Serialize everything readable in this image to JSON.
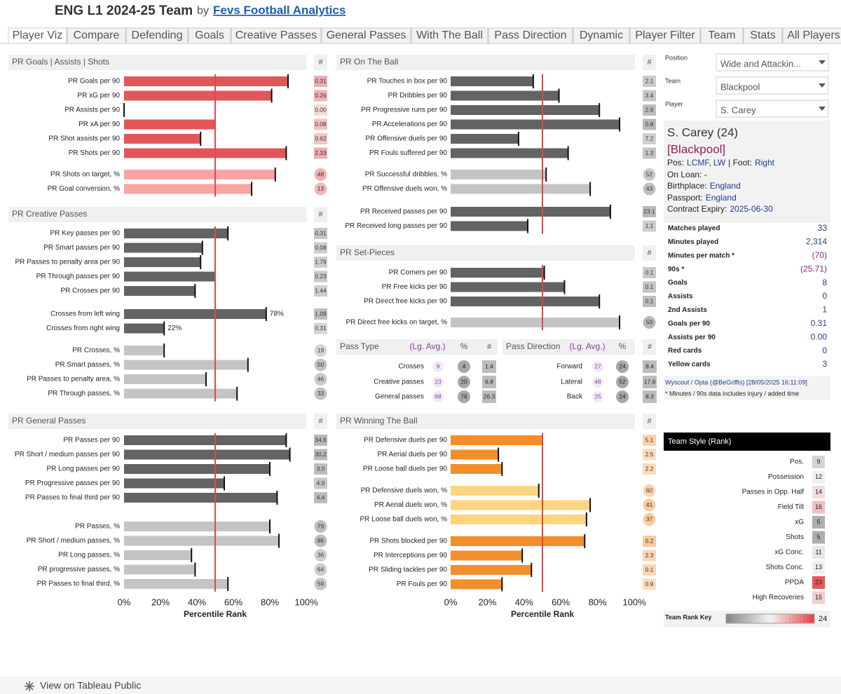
{
  "header": {
    "title": "ENG L1 2024-25 Team",
    "by": "by",
    "author": "Fevs Football Analytics"
  },
  "tabs": [
    "Player Viz",
    "Compare",
    "Defending",
    "Goals",
    "Creative Passes",
    "General Passes",
    "With The Ball",
    "Pass Direction",
    "Dynamic",
    "Player Filter",
    "Team",
    "Stats",
    "All Players"
  ],
  "axis": {
    "range": [
      0,
      100
    ],
    "ticks": [
      {
        "value": 0,
        "label": "0%"
      },
      {
        "value": 20,
        "label": "20%"
      },
      {
        "value": 40,
        "label": "40%"
      },
      {
        "value": 60,
        "label": "60%"
      },
      {
        "value": 80,
        "label": "80%"
      },
      {
        "value": 100,
        "label": "100%"
      }
    ],
    "label": "Percentile Rank",
    "reference": 50
  },
  "panels": [
    {
      "title": "PR Goals | Assists | Shots",
      "count_header": "#",
      "color": "#e15759",
      "light_color": "#f9a3a3",
      "cell_color": "#f0a8a8",
      "groups": [
        {
          "style": "count",
          "rows": [
            {
              "label": "PR Goals per 90",
              "pr": 90,
              "value": 0.31
            },
            {
              "label": "PR xG per 90",
              "pr": 81,
              "value": 0.26
            },
            {
              "label": "PR Assists per 90",
              "pr": 0,
              "value": "0.00"
            },
            {
              "label": "PR xA per 90",
              "pr": 50,
              "value": 0.08
            },
            {
              "label": "PR Shot assists per 90",
              "pr": 42,
              "value": 0.62
            },
            {
              "label": "PR Shots per 90",
              "pr": 89,
              "value": 2.33
            }
          ]
        },
        {
          "style": "rate",
          "rows": [
            {
              "label": "PR Shots on target, %",
              "pr": 83,
              "value": 48
            },
            {
              "label": "PR Goal conversion, %",
              "pr": 70,
              "value": 13
            }
          ]
        }
      ]
    },
    {
      "title": "PR Creative Passes",
      "count_header": "#",
      "color": "#636363",
      "light_color": "#c4c4c4",
      "cell_color": "#b5b5b5",
      "groups": [
        {
          "style": "count",
          "rows": [
            {
              "label": "PR Key passes per 90",
              "pr": 57,
              "value": 0.31
            },
            {
              "label": "PR Smart passes per 90",
              "pr": 43,
              "value": 0.08
            },
            {
              "label": "PR Passes to penalty area per 90",
              "pr": 42,
              "value": 1.79
            },
            {
              "label": "PR Through passes per 90",
              "pr": 50,
              "value": 0.23
            },
            {
              "label": "PR Crosses per 90",
              "pr": 39,
              "value": 1.44
            }
          ]
        },
        {
          "style": "count",
          "rows": [
            {
              "label": "Crosses from left wing",
              "pr": 78,
              "bar_label": "78%",
              "value": 1.09
            },
            {
              "label": "Crosses from right wing",
              "pr": 22,
              "bar_label": "22%",
              "value": 0.31
            }
          ]
        },
        {
          "style": "rate",
          "rows": [
            {
              "label": "PR Crosses, %",
              "pr": 22,
              "value": 19
            },
            {
              "label": "PR Smart passes, %",
              "pr": 68,
              "value": 50
            },
            {
              "label": "PR Passes to penalty area, %",
              "pr": 45,
              "value": 46
            },
            {
              "label": "PR Through passes, %",
              "pr": 62,
              "value": 33
            }
          ]
        }
      ]
    },
    {
      "title": "PR General Passes",
      "count_header": "#",
      "color": "#636363",
      "light_color": "#c4c4c4",
      "cell_color": "#b5b5b5",
      "groups": [
        {
          "style": "count",
          "rows": [
            {
              "label": "PR Passes per 90",
              "pr": 89,
              "value": 34.6
            },
            {
              "label": "PR Short / medium passes per 90",
              "pr": 91,
              "value": 30.2
            },
            {
              "label": "PR Long passes per 90",
              "pr": 80,
              "value": "3.0"
            },
            {
              "label": "PR Progressive passes per 90",
              "pr": 55,
              "value": "4.0"
            },
            {
              "label": "PR Passes to final third per 90",
              "pr": 84,
              "value": 4.4
            }
          ]
        },
        {
          "style": "rate",
          "rows": [
            {
              "label": "PR Passes, %",
              "pr": 80,
              "value": 79
            },
            {
              "label": "PR Short / medium passes, %",
              "pr": 85,
              "value": 86
            },
            {
              "label": "PR Long passes, %",
              "pr": 37,
              "value": 36
            },
            {
              "label": "PR progressive passes, %",
              "pr": 39,
              "value": 64
            },
            {
              "label": "PR Passes to final third, %",
              "pr": 57,
              "value": 59
            }
          ]
        }
      ]
    },
    {
      "title": "PR On The Ball",
      "count_header": "#",
      "color": "#636363",
      "light_color": "#c4c4c4",
      "cell_color": "#b5b5b5",
      "groups": [
        {
          "style": "count",
          "rows": [
            {
              "label": "PR Touches in box per 90",
              "pr": 45,
              "value": 2.1
            },
            {
              "label": "PR Dribbles per 90",
              "pr": 59,
              "value": 3.4
            },
            {
              "label": "PR Progressive runs per 90",
              "pr": 81,
              "value": 2.6
            },
            {
              "label": "PR Accelerations per 90",
              "pr": 92,
              "value": 0.8
            },
            {
              "label": "PR Offensive duels per 90",
              "pr": 37,
              "value": 7.2
            },
            {
              "label": "PR Fouls suffered per 90",
              "pr": 64,
              "value": 1.3
            }
          ]
        },
        {
          "style": "rate",
          "rows": [
            {
              "label": "PR Successful dribbles, %",
              "pr": 52,
              "value": 52
            },
            {
              "label": "PR Offensive duels won, %",
              "pr": 76,
              "value": 43
            }
          ]
        },
        {
          "style": "count",
          "rows": [
            {
              "label": "PR Received passes per 90",
              "pr": 87,
              "value": 23.1
            },
            {
              "label": "PR Received long passes per 90",
              "pr": 42,
              "value": 1.1
            }
          ]
        }
      ]
    },
    {
      "title": "PR Set-Pieces",
      "count_header": "#",
      "color": "#636363",
      "light_color": "#c4c4c4",
      "cell_color": "#b5b5b5",
      "groups": [
        {
          "style": "count",
          "rows": [
            {
              "label": "PR Corners per 90",
              "pr": 51,
              "value": 0.1
            },
            {
              "label": "PR Free kicks per 90",
              "pr": 62,
              "value": 0.1
            },
            {
              "label": "PR Direct free kicks per 90",
              "pr": 81,
              "value": 0.1
            }
          ]
        },
        {
          "style": "rate",
          "rows": [
            {
              "label": "PR Direct free kicks on target, %",
              "pr": 92,
              "value": 50
            }
          ]
        }
      ]
    },
    {
      "title": "PR Winning The Ball",
      "count_header": "#",
      "color": "#f28e2b",
      "light_color": "#fdd47f",
      "cell_color": "#f8c38f",
      "groups": [
        {
          "style": "count",
          "rows": [
            {
              "label": "PR Defensive duels per 90",
              "pr": 50,
              "value": 5.1
            },
            {
              "label": "PR Aerial duels per 90",
              "pr": 26,
              "value": 2.5
            },
            {
              "label": "PR Loose ball duels per 90",
              "pr": 28,
              "value": 2.2
            }
          ]
        },
        {
          "style": "rate",
          "rows": [
            {
              "label": "PR Defensive duels won, %",
              "pr": 48,
              "value": 60
            },
            {
              "label": "PR Aerial duels won, %",
              "pr": 76,
              "value": 41
            },
            {
              "label": "PR Loose ball duels won, %",
              "pr": 74,
              "value": 37
            }
          ]
        },
        {
          "style": "count",
          "rows": [
            {
              "label": "PR Shots blocked per 90",
              "pr": 73,
              "value": 0.2
            },
            {
              "label": "PR Interceptions per 90",
              "pr": 39,
              "value": 2.3
            },
            {
              "label": "PR Sliding tackles per 90",
              "pr": 44,
              "value": 0.1
            },
            {
              "label": "PR Fouls per 90",
              "pr": 28,
              "value": 0.9
            }
          ]
        }
      ]
    }
  ],
  "pass_table": {
    "sections": [
      {
        "title": "Pass Type",
        "avg_header": "(Lg. Avg.)",
        "pct_header": "%",
        "count_header": "#",
        "rows": [
          {
            "label": "Crosses",
            "avg": 9,
            "pct": 4,
            "count": 1.4
          },
          {
            "label": "Creative passes",
            "avg": 23,
            "pct": 20,
            "count": 6.8
          },
          {
            "label": "General passes",
            "avg": 68,
            "pct": 76,
            "count": 26.3
          }
        ]
      },
      {
        "title": "Pass Direction",
        "avg_header": "(Lg. Avg.)",
        "pct_header": "%",
        "count_header": "#",
        "rows": [
          {
            "label": "Forward",
            "avg": 27,
            "pct": 24,
            "count": 8.4
          },
          {
            "label": "Lateral",
            "avg": 48,
            "pct": 52,
            "count": 17.9
          },
          {
            "label": "Back",
            "avg": 25,
            "pct": 24,
            "count": 8.3
          }
        ]
      }
    ]
  },
  "filters": [
    {
      "label": "Position",
      "value": "Wide and Attackin..."
    },
    {
      "label": "Team",
      "value": "Blackpool"
    },
    {
      "label": "Player",
      "value": "S. Carey"
    }
  ],
  "player": {
    "name": "S. Carey (24)",
    "team": "[Blackpool]",
    "pos_label": "Pos:",
    "pos": "LCMF, LW",
    "foot_label": "| Foot:",
    "foot": "Right",
    "loan": "On Loan: -",
    "birthplace_label": "Birthplace:",
    "birthplace": "England",
    "passport_label": "Passport:",
    "passport": "England",
    "contract_label": "Contract Expiry:",
    "contract": "2025-06-30"
  },
  "stats": [
    {
      "label": "Matches played",
      "value": 33
    },
    {
      "label": "Minutes played",
      "value": "2,314"
    },
    {
      "label": "Minutes per match *",
      "value": "(70)"
    },
    {
      "label": "90s *",
      "value": "(25.71)"
    },
    {
      "label": "Goals",
      "value": 8
    },
    {
      "label": "Assists",
      "value": 0
    },
    {
      "label": "2nd Assists",
      "value": 1
    },
    {
      "label": "Goals per 90",
      "value": 0.31
    },
    {
      "label": "Assists per 90",
      "value": "0.00"
    },
    {
      "label": "Red cards",
      "value": 0
    },
    {
      "label": "Yellow cards",
      "value": 3
    }
  ],
  "source": "Wyscout / Opta (@BeGriffis) [28/05/2025 16:11:09]",
  "note": "* Minutes / 90s data includes injury / added time",
  "team_style": {
    "title": "Team Style (Rank)",
    "rows": [
      {
        "label": "Pos.",
        "rank": 9
      },
      {
        "label": "Possession",
        "rank": 12
      },
      {
        "label": "Passes in Opp. Half",
        "rank": 14
      },
      {
        "label": "Field Tilt",
        "rank": 16
      },
      {
        "label": "xG",
        "rank": 5
      },
      {
        "label": "Shots",
        "rank": 5
      },
      {
        "label": "xG Conc.",
        "rank": 11
      },
      {
        "label": "Shots Conc.",
        "rank": 13
      },
      {
        "label": "PPDA",
        "rank": 23
      },
      {
        "label": "High Recoveries",
        "rank": 15
      }
    ],
    "key_label": "Team Rank Key",
    "key_max": 24
  },
  "footer": "View on Tableau Public"
}
